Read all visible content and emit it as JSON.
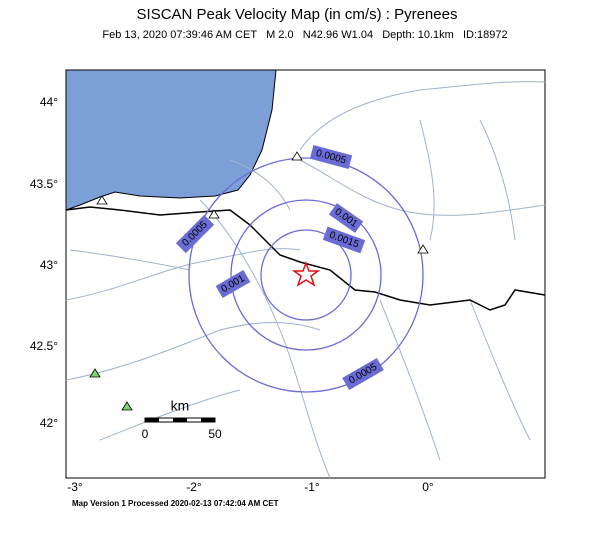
{
  "header": {
    "title": "SISCAN Peak Velocity Map (in cm/s) : Pyrenees",
    "subtitle": "Feb 13, 2020 07:39:46 AM CET   M 2.0   N42.96 W1.04   Depth: 10.1km   ID:18972"
  },
  "axes": {
    "lat_labels": [
      "44°",
      "43.5°",
      "43°",
      "42.5°",
      "42°"
    ],
    "lon_labels": [
      "-3°",
      "-2°",
      "-1°",
      "0°"
    ]
  },
  "contours": {
    "labels": [
      "0.0005",
      "0.001",
      "0.0015",
      "0.0005",
      "0.001",
      "0.0005"
    ]
  },
  "scale": {
    "unit": "km",
    "start": "0",
    "end": "50"
  },
  "footer": "Map Version 1 Processed 2020-02-13 07:42:04 AM CET"
}
